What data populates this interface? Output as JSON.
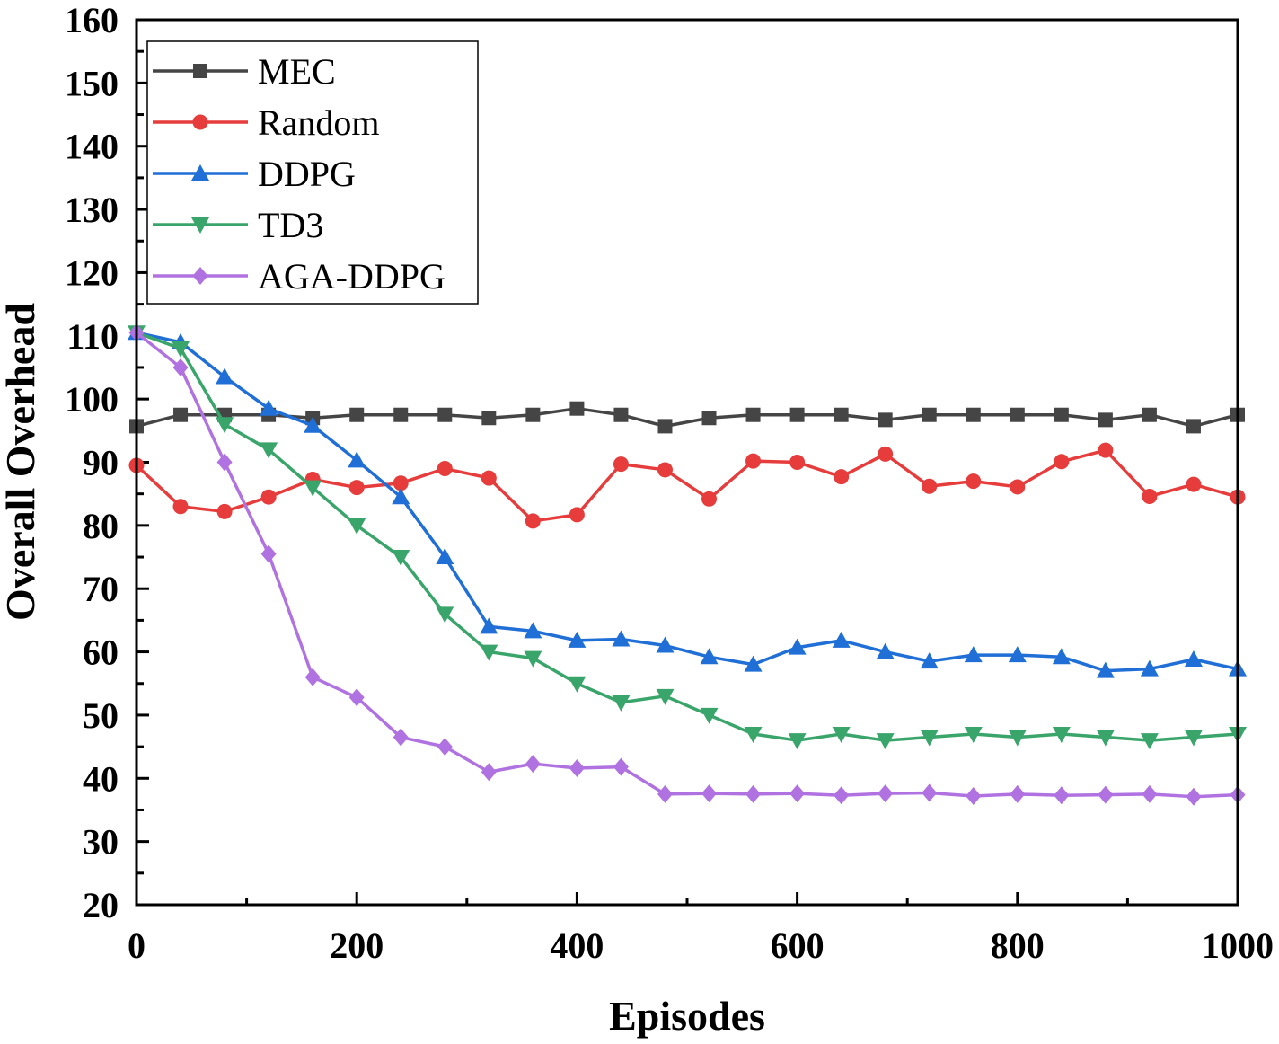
{
  "chart_data": {
    "type": "line",
    "title": "",
    "xlabel": "Episodes",
    "ylabel": "Overall Overhead",
    "xlim": [
      0,
      1000
    ],
    "ylim": [
      20,
      160
    ],
    "xticks": [
      0,
      200,
      400,
      600,
      800,
      1000
    ],
    "yticks": [
      20,
      30,
      40,
      50,
      60,
      70,
      80,
      90,
      100,
      110,
      120,
      130,
      140,
      150,
      160
    ],
    "legend_position": "top-left",
    "x": [
      0,
      40,
      80,
      120,
      160,
      200,
      240,
      280,
      320,
      360,
      400,
      440,
      480,
      520,
      560,
      600,
      640,
      680,
      720,
      760,
      800,
      840,
      880,
      920,
      960,
      1000
    ],
    "series": [
      {
        "name": "MEC",
        "color": "#454545",
        "marker": "square",
        "values": [
          95.7,
          97.5,
          97.5,
          97.5,
          97.0,
          97.5,
          97.5,
          97.5,
          97.0,
          97.5,
          98.5,
          97.5,
          95.7,
          97.0,
          97.5,
          97.5,
          97.5,
          96.7,
          97.5,
          97.5,
          97.5,
          97.5,
          96.7,
          97.5,
          95.7,
          97.5
        ]
      },
      {
        "name": "Random",
        "color": "#e63c3c",
        "marker": "circle",
        "values": [
          89.5,
          83.0,
          82.2,
          84.5,
          87.3,
          86.0,
          86.7,
          89.0,
          87.5,
          80.7,
          81.7,
          89.7,
          88.8,
          84.2,
          90.2,
          90.0,
          87.7,
          91.3,
          86.2,
          87.0,
          86.1,
          90.1,
          91.9,
          84.6,
          86.5,
          84.5
        ]
      },
      {
        "name": "DDPG",
        "color": "#1f6fd6",
        "marker": "triangle-up",
        "values": [
          110.5,
          109.0,
          103.5,
          98.5,
          95.8,
          90.3,
          84.5,
          75.0,
          64.0,
          63.3,
          61.8,
          62.0,
          61.0,
          59.2,
          58.0,
          60.7,
          61.8,
          60.0,
          58.5,
          59.5,
          59.5,
          59.2,
          57.0,
          57.3,
          58.8,
          57.3
        ]
      },
      {
        "name": "TD3",
        "color": "#3aa56b",
        "marker": "triangle-down",
        "values": [
          110.5,
          108.0,
          96.0,
          92.0,
          86.0,
          80.0,
          75.0,
          66.0,
          60.0,
          59.0,
          55.0,
          52.0,
          53.0,
          50.0,
          47.0,
          46.0,
          47.0,
          46.0,
          46.5,
          47.0,
          46.5,
          47.0,
          46.5,
          46.0,
          46.5,
          47.0
        ]
      },
      {
        "name": "AGA-DDPG",
        "color": "#b072e0",
        "marker": "diamond",
        "values": [
          110.5,
          105.0,
          90.0,
          75.5,
          56.0,
          52.8,
          46.5,
          45.0,
          41.0,
          42.3,
          41.6,
          41.8,
          37.5,
          37.6,
          37.5,
          37.6,
          37.3,
          37.6,
          37.7,
          37.2,
          37.5,
          37.3,
          37.4,
          37.5,
          37.1,
          37.4
        ]
      }
    ]
  }
}
